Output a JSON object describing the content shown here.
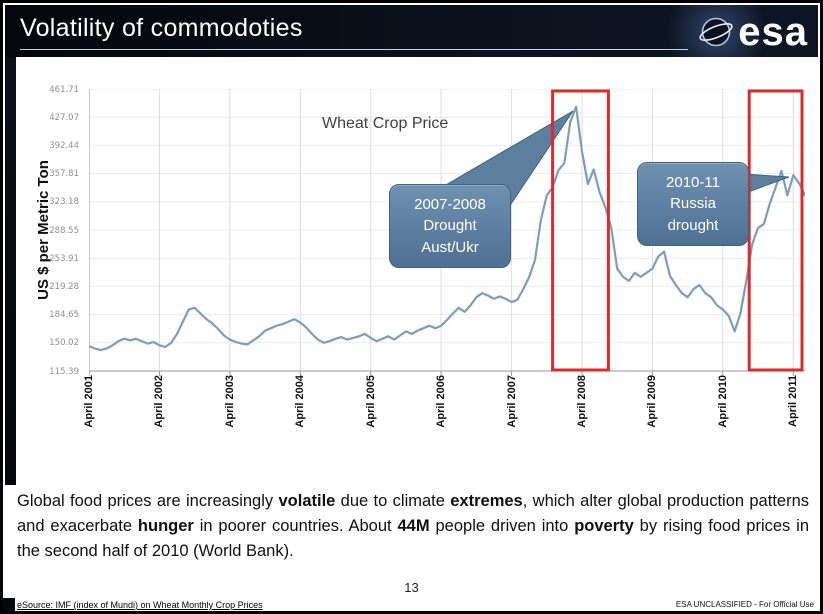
{
  "slide": {
    "title": "Volatility of commodoties",
    "logo_text": "esa",
    "page_number": "13",
    "source_note": "eSource: IMF (index of Mundi) on Wheat Monthly Crop Prices",
    "classification": "ESA UNCLASSIFIED - For Official Use"
  },
  "chart_data": {
    "type": "line",
    "title": "Wheat Crop Price",
    "ylabel": "US $ per Metric Ton",
    "ylim": [
      115.39,
      461.71
    ],
    "y_ticks": [
      "461.71",
      "427.07",
      "392.44",
      "357.81",
      "323.18",
      "288.55",
      "253.91",
      "219.28",
      "184.65",
      "150.02",
      "115.39"
    ],
    "x_tick_labels": [
      "April 2001",
      "April 2002",
      "April 2003",
      "April 2004",
      "April 2005",
      "April 2006",
      "April 2007",
      "April 2008",
      "April 2009",
      "April 2010",
      "April 2011"
    ],
    "x_tick_month_interval": 12,
    "grid": true,
    "legend": "none",
    "line_color": "#7b9dbf",
    "annotation_fill": "#5d7f9e",
    "annotation_fill_top": "#6e91b0",
    "annotation_fill_bottom": "#4e7093",
    "highlight_color": "#dd2b2b",
    "series": [
      {
        "name": "Wheat monthly crop price (US $ per metric ton)",
        "start": "April 2001",
        "frequency": "monthly",
        "values": [
          146,
          143,
          141,
          143,
          147,
          152,
          155,
          153,
          155,
          152,
          149,
          151,
          147,
          145,
          150,
          161,
          176,
          191,
          193,
          186,
          179,
          174,
          167,
          159,
          154,
          151,
          149,
          148,
          153,
          158,
          165,
          168,
          171,
          173,
          176,
          179,
          175,
          169,
          161,
          154,
          150,
          152,
          155,
          157,
          154,
          156,
          158,
          161,
          156,
          152,
          155,
          158,
          154,
          159,
          164,
          161,
          165,
          168,
          171,
          168,
          171,
          178,
          186,
          193,
          188,
          196,
          206,
          211,
          208,
          204,
          207,
          204,
          200,
          203,
          216,
          231,
          252,
          301,
          331,
          341,
          362,
          371,
          421,
          440,
          385,
          345,
          363,
          335,
          316,
          291,
          241,
          231,
          226,
          236,
          231,
          236,
          241,
          256,
          262,
          232,
          221,
          211,
          206,
          216,
          221,
          211,
          206,
          196,
          191,
          183,
          164,
          186,
          226,
          271,
          291,
          296,
          321,
          341,
          361,
          331,
          356,
          346,
          331
        ]
      }
    ],
    "annotations": [
      {
        "id": "drought-aust-ukr",
        "text": "2007-2008\nDrought\nAust/Ukr"
      },
      {
        "id": "russia-drought",
        "text": "2010-11\nRussia\ndrought"
      }
    ],
    "highlights": [
      {
        "label": "2008 price spike",
        "from_month": 79,
        "to_month": 88.5
      },
      {
        "label": "2010-11 price spike",
        "from_month": 112.5,
        "to_month": 121.5
      }
    ]
  },
  "body": {
    "paragraph": [
      {
        "text": "Global food prices are increasingly ",
        "bold": false
      },
      {
        "text": "volatile",
        "bold": true
      },
      {
        "text": " due to climate ",
        "bold": false
      },
      {
        "text": "extremes",
        "bold": true
      },
      {
        "text": ", which alter global production patterns and exacerbate ",
        "bold": false
      },
      {
        "text": "hunger",
        "bold": true
      },
      {
        "text": " in poorer countries.  About ",
        "bold": false
      },
      {
        "text": "44M",
        "bold": true
      },
      {
        "text": " people driven into ",
        "bold": false
      },
      {
        "text": "poverty",
        "bold": true
      },
      {
        "text": " by rising food prices in the second half of 2010 (World Bank).",
        "bold": false
      }
    ]
  }
}
